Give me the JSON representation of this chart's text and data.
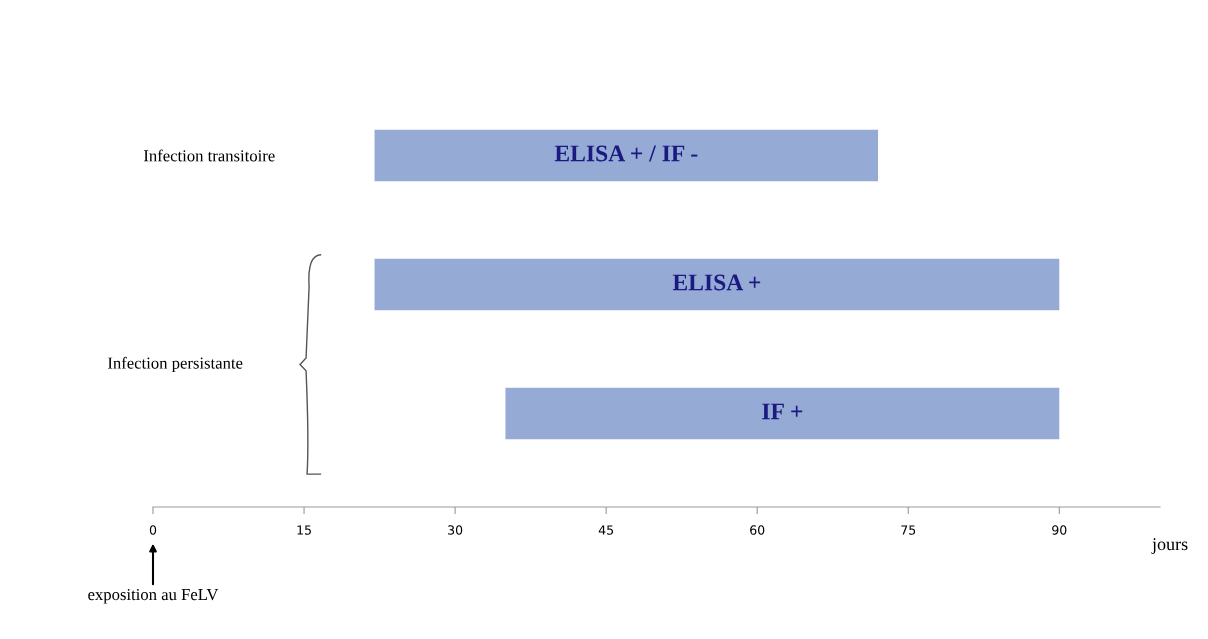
{
  "chart_data": {
    "type": "bar",
    "orientation": "horizontal",
    "categories": [
      "Infection transitoire",
      null,
      null
    ],
    "base": [
      22,
      22,
      35
    ],
    "values": [
      50,
      68,
      55
    ],
    "value_labels": [
      "ELISA + / IF -",
      "ELISA +",
      "IF +"
    ],
    "color": "#96aad6",
    "xlabel": "jours",
    "xlim": [
      0,
      100
    ],
    "xticks": [
      0,
      15,
      30,
      45,
      60,
      75,
      90
    ],
    "grid": false,
    "annotations": [
      "Infection persistante",
      "exposition au FeLV"
    ]
  }
}
